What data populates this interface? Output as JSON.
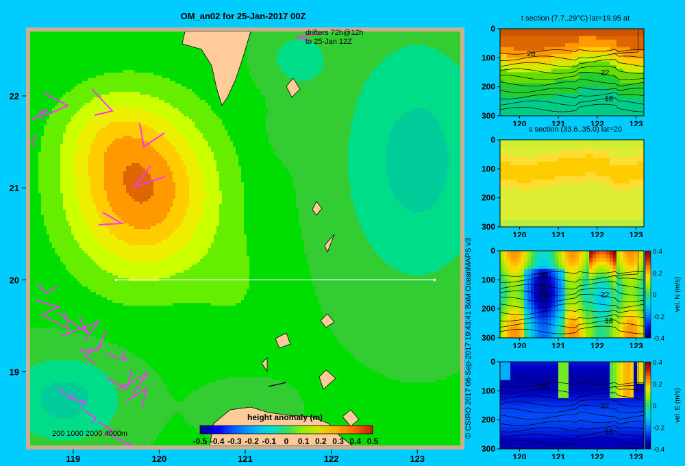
{
  "chart_data": [
    {
      "type": "heatmap",
      "title": "OM_an02 for 25-Jan-2017 00Z",
      "annotation": "drifters 72h@12h\nto 25-Jan 12Z",
      "x_ticks": [
        "119",
        "120",
        "121",
        "122",
        "123"
      ],
      "y_ticks": [
        "22",
        "21",
        "20",
        "19"
      ],
      "xlim": [
        118.5,
        123.5
      ],
      "ylim": [
        18.2,
        22.7
      ],
      "scale_text": "200  1000  2000  4000m",
      "colorbar": {
        "label": "height anomaly (m)",
        "ticks": [
          "-0.5",
          "-0.4",
          "-0.3",
          "-0.2",
          "-0.1",
          "0",
          "0.1",
          "0.2",
          "0.3",
          "0.4",
          "0.5"
        ],
        "range": [
          -0.5,
          0.5
        ]
      },
      "section_line": {
        "lat": 20,
        "lon": [
          119.5,
          123.2
        ]
      },
      "field": {
        "background": -0.05,
        "centers": [
          {
            "lon": 119.8,
            "lat": 20.95,
            "amp": 0.47,
            "sx": 0.85,
            "sy": 0.9
          },
          {
            "lon": 119.4,
            "lat": 21.6,
            "amp": 0.12,
            "sx": 0.6,
            "sy": 0.5
          },
          {
            "lon": 120.9,
            "lat": 19.9,
            "amp": 0.06,
            "sx": 0.5,
            "sy": 0.6
          },
          {
            "lon": 123.0,
            "lat": 21.3,
            "amp": -0.2,
            "sx": 0.9,
            "sy": 1.4
          },
          {
            "lon": 118.9,
            "lat": 18.7,
            "amp": -0.2,
            "sx": 0.7,
            "sy": 0.5
          },
          {
            "lon": 121.6,
            "lat": 22.4,
            "amp": -0.12,
            "sx": 0.4,
            "sy": 0.35
          },
          {
            "lon": 121.5,
            "lat": 21.6,
            "amp": -0.04,
            "sx": 0.3,
            "sy": 0.3
          },
          {
            "lon": 121.0,
            "lat": 18.6,
            "amp": -0.06,
            "sx": 0.5,
            "sy": 0.3
          }
        ]
      }
    },
    {
      "type": "heatmap",
      "title": "t section (7.7..29°C) lat=19.95 at",
      "x_ticks": [
        "120",
        "121",
        "122",
        "123"
      ],
      "y_ticks": [
        "0",
        "100",
        "200",
        "300"
      ],
      "xlim": [
        119.5,
        123.2
      ],
      "ylim": [
        300,
        0
      ],
      "contour_labels": [
        {
          "text": "26",
          "x": 120.3,
          "y": 85
        },
        {
          "text": "22",
          "x": 122.2,
          "y": 150
        },
        {
          "text": "18",
          "x": 122.3,
          "y": 240
        }
      ]
    },
    {
      "type": "heatmap",
      "title": "s section (33.6..35.0) lat=20",
      "x_ticks": [
        "120",
        "121",
        "122",
        "123"
      ],
      "y_ticks": [
        "0",
        "100",
        "200",
        "300"
      ],
      "xlim": [
        119.5,
        123.2
      ],
      "ylim": [
        300,
        0
      ]
    },
    {
      "type": "heatmap",
      "title": "",
      "x_ticks": [
        "120",
        "121",
        "122",
        "123"
      ],
      "y_ticks": [
        "0",
        "100",
        "200",
        "300"
      ],
      "xlim": [
        119.5,
        123.2
      ],
      "ylim": [
        300,
        0
      ],
      "colorbar": {
        "label": "vel. N (m/s)",
        "ticks": [
          "0.4",
          "0.2",
          "0",
          "-0.2",
          "-0.4"
        ],
        "range": [
          -0.4,
          0.4
        ]
      },
      "contour_labels": [
        {
          "text": "26",
          "x": 120.6,
          "y": 85
        },
        {
          "text": "22",
          "x": 122.2,
          "y": 150
        },
        {
          "text": "18",
          "x": 122.3,
          "y": 240
        }
      ]
    },
    {
      "type": "heatmap",
      "title": "",
      "x_ticks": [
        "120",
        "121",
        "122",
        "123"
      ],
      "y_ticks": [
        "0",
        "100",
        "200",
        "300"
      ],
      "xlim": [
        119.5,
        123.2
      ],
      "ylim": [
        300,
        0
      ],
      "colorbar": {
        "label": "vel. E (m/s)",
        "ticks": [
          "0.4",
          "0.2",
          "0",
          "-0.2",
          "-0.4"
        ],
        "range": [
          -0.4,
          0.4
        ]
      },
      "contour_labels": [
        {
          "text": "26",
          "x": 120.6,
          "y": 85
        },
        {
          "text": "22",
          "x": 122.2,
          "y": 150
        },
        {
          "text": "18",
          "x": 122.3,
          "y": 240
        }
      ]
    }
  ],
  "credit": "© CSIRO 2017   06-Sep-2017 19:43:41 BoM OceanMAPS v3"
}
